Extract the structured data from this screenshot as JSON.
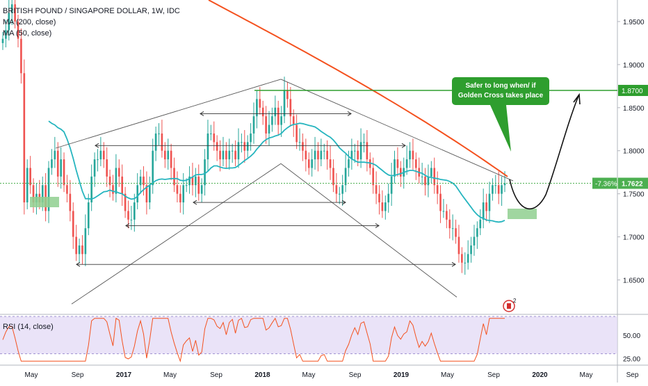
{
  "header": {
    "title": "BRITISH POUND / SINGAPORE DOLLAR, 1W, IDC",
    "ma200_label": "MA (200, close)",
    "ma50_label": "MA (50, close)",
    "rsi_label": "RSI (14, close)"
  },
  "annotation": {
    "callout_line1": "Safer to long when/ if",
    "callout_line2": "Golden Cross takes place",
    "level_tag": "1.8700",
    "price_change": "-7.36%",
    "price_tag": "1.7622",
    "logo_badge": "2"
  },
  "colors": {
    "up": "#26a69a",
    "down": "#ef5350",
    "ma200": "#f4511e",
    "ma50": "#26b5bf",
    "rsi": "#f4511e",
    "rsi_band": "#e1d7f5",
    "annotation_green": "#2e9e2e",
    "price_tag": "#4caf50"
  },
  "chart_data": {
    "type": "candlestick",
    "x_labels": [
      "May",
      "Sep",
      "2017",
      "May",
      "Sep",
      "2018",
      "May",
      "Sep",
      "2019",
      "May",
      "Sep",
      "2020",
      "May",
      "Sep"
    ],
    "y_ticks": [
      "1.9500",
      "1.9000",
      "1.8500",
      "1.8000",
      "1.7500",
      "1.7000",
      "1.6500"
    ],
    "y_tick_values": [
      1.95,
      1.9,
      1.85,
      1.8,
      1.75,
      1.7,
      1.65
    ],
    "ylim": [
      1.61,
      1.975
    ],
    "rsi_ticks": [
      "50.00",
      "25.00"
    ],
    "rsi_tick_values": [
      50,
      25
    ],
    "rsi_range": [
      20,
      70
    ],
    "rsi_band": [
      30,
      70
    ],
    "last_price": 1.7622,
    "level": 1.87,
    "close_series": [
      1.93,
      1.94,
      1.96,
      1.97,
      1.95,
      1.93,
      1.89,
      1.74,
      1.78,
      1.76,
      1.74,
      1.75,
      1.74,
      1.76,
      1.73,
      1.78,
      1.79,
      1.8,
      1.77,
      1.79,
      1.76,
      1.75,
      1.73,
      1.7,
      1.68,
      1.69,
      1.68,
      1.71,
      1.74,
      1.77,
      1.79,
      1.79,
      1.8,
      1.79,
      1.77,
      1.76,
      1.75,
      1.78,
      1.77,
      1.75,
      1.73,
      1.72,
      1.72,
      1.74,
      1.76,
      1.77,
      1.76,
      1.74,
      1.76,
      1.8,
      1.82,
      1.82,
      1.8,
      1.79,
      1.8,
      1.78,
      1.76,
      1.75,
      1.74,
      1.76,
      1.76,
      1.77,
      1.76,
      1.77,
      1.75,
      1.76,
      1.79,
      1.82,
      1.82,
      1.81,
      1.8,
      1.79,
      1.8,
      1.79,
      1.8,
      1.8,
      1.79,
      1.81,
      1.81,
      1.8,
      1.81,
      1.82,
      1.84,
      1.86,
      1.85,
      1.84,
      1.82,
      1.83,
      1.84,
      1.85,
      1.83,
      1.84,
      1.87,
      1.86,
      1.84,
      1.83,
      1.81,
      1.81,
      1.8,
      1.79,
      1.78,
      1.79,
      1.8,
      1.79,
      1.8,
      1.8,
      1.79,
      1.78,
      1.76,
      1.75,
      1.75,
      1.76,
      1.78,
      1.79,
      1.8,
      1.8,
      1.79,
      1.81,
      1.81,
      1.79,
      1.78,
      1.76,
      1.75,
      1.74,
      1.73,
      1.74,
      1.75,
      1.77,
      1.79,
      1.78,
      1.77,
      1.78,
      1.79,
      1.8,
      1.79,
      1.78,
      1.77,
      1.77,
      1.76,
      1.77,
      1.78,
      1.76,
      1.75,
      1.73,
      1.73,
      1.72,
      1.71,
      1.71,
      1.7,
      1.68,
      1.67,
      1.67,
      1.68,
      1.69,
      1.7,
      1.71,
      1.72,
      1.74,
      1.73,
      1.75,
      1.76,
      1.76,
      1.75,
      1.76,
      1.7622
    ]
  }
}
